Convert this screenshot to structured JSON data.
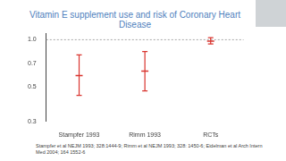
{
  "chart_data": {
    "type": "errorbar",
    "title": "Vitamin E supplement use and risk of Coronary Heart Disease",
    "categories": [
      "Stampfer 1993",
      "Rimm 1993",
      "RCTs"
    ],
    "values": [
      0.59,
      0.63,
      0.98
    ],
    "error_low": [
      0.44,
      0.47,
      0.94
    ],
    "error_high": [
      0.8,
      0.84,
      1.03
    ],
    "color": "#d9352f",
    "marker": "line",
    "log": "y",
    "ylim": [
      0.3,
      1.1
    ],
    "yticks": [
      0.3,
      0.5,
      0.7,
      {
        "value": 1,
        "label": "1.0"
      }
    ],
    "reference_line": 1,
    "grid": false,
    "footnote": "Stampfer et al NEJM 1993; 328:1444-9; Rimm et al NEJM 1993; 328: 1450-6; Eidelman et al Arch Intern Med 2004; 164 1552-6"
  }
}
